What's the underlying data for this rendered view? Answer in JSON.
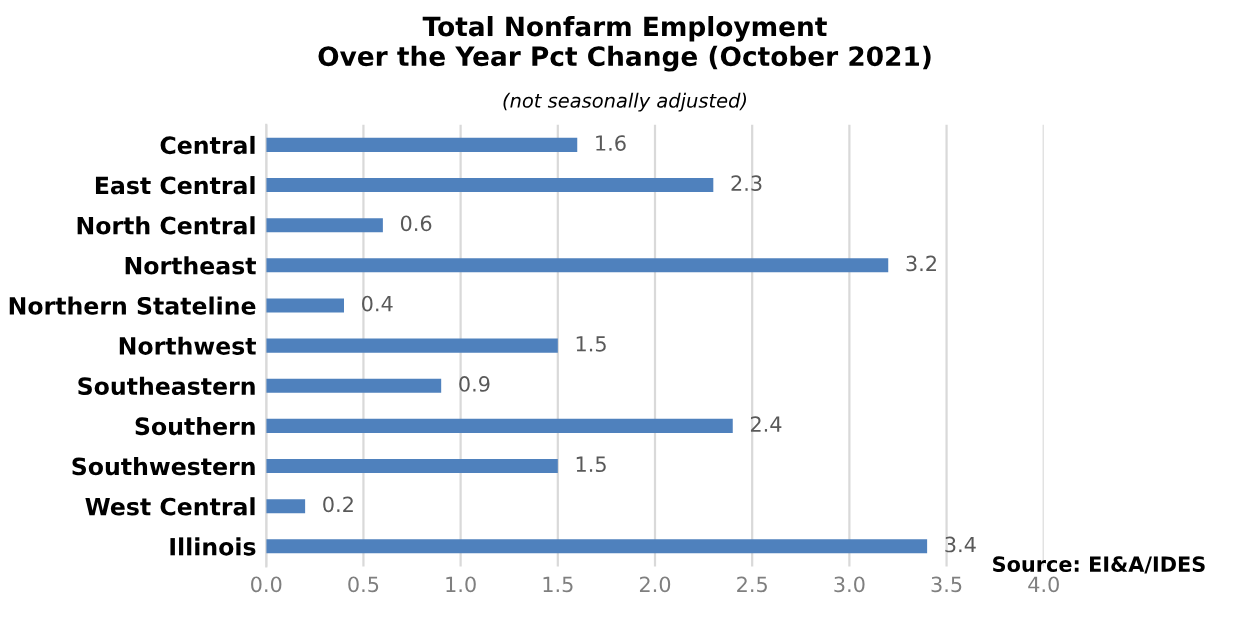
{
  "chart_data": {
    "type": "bar",
    "orientation": "horizontal",
    "title": "Total Nonfarm Employment\nOver the Year Pct Change (October 2021)",
    "subtitle": "(not seasonally adjusted)",
    "categories": [
      "Central",
      "East Central",
      "North Central",
      "Northeast",
      "Northern Stateline",
      "Northwest",
      "Southeastern",
      "Southern",
      "Southwestern",
      "West Central",
      "Illinois"
    ],
    "values": [
      1.6,
      2.3,
      0.6,
      3.2,
      0.4,
      1.5,
      0.9,
      2.4,
      1.5,
      0.2,
      3.4
    ],
    "color": "#4f81bd",
    "data_labels": true,
    "xlim": [
      0,
      4
    ],
    "xticks": [
      {
        "value": 0,
        "label": "0.0"
      },
      {
        "value": 0.5,
        "label": "0.5"
      },
      {
        "value": 1,
        "label": "1.0"
      },
      {
        "value": 1.5,
        "label": "1.5"
      },
      {
        "value": 2,
        "label": "2.0"
      },
      {
        "value": 2.5,
        "label": "2.5"
      },
      {
        "value": 3,
        "label": "3.0"
      },
      {
        "value": 3.5,
        "label": "3.5"
      },
      {
        "value": 4,
        "label": "4.0"
      }
    ],
    "grid": "x",
    "annotations": [
      "Source: EI&A/IDES"
    ]
  }
}
